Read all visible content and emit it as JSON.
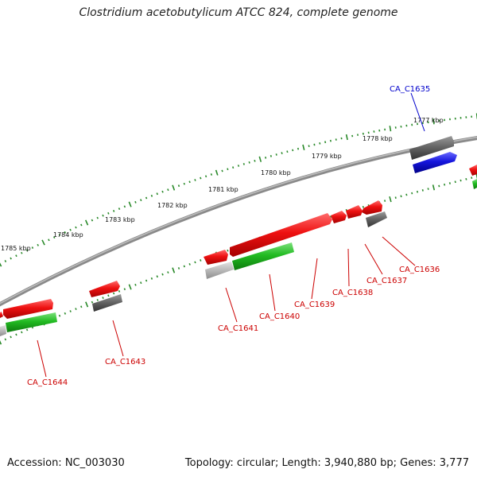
{
  "title": "Clostridium acetobutylicum ATCC 824, complete genome",
  "accession_label": "Accession: NC_003030",
  "info_label": "Topology: circular; Length: 3,940,880 bp; Genes: 3,777",
  "colors": {
    "backbone": "#8a8a8a",
    "forward_gene": "#ee1111",
    "highlight_gene": "#1515dd",
    "forward_rna": "#ee1111",
    "gray_feature": "#666666",
    "light_gray_feature": "#bdbdbd",
    "green_feature": "#22bb22",
    "tick_green": "#2a8a2a",
    "label_red": "#cc0000",
    "label_blue": "#0000cc"
  },
  "kbp_ticks": [
    "1777 kbp",
    "1778 kbp",
    "1779 kbp",
    "1780 kbp",
    "1781 kbp",
    "1782 kbp",
    "1783 kbp",
    "1784 kbp",
    "1785 kbp"
  ],
  "gene_labels": [
    "CA_C1635",
    "CA_C1636",
    "CA_C1637",
    "CA_C1638",
    "CA_C1639",
    "CA_C1640",
    "CA_C1641",
    "CA_C1643",
    "CA_C1644"
  ]
}
